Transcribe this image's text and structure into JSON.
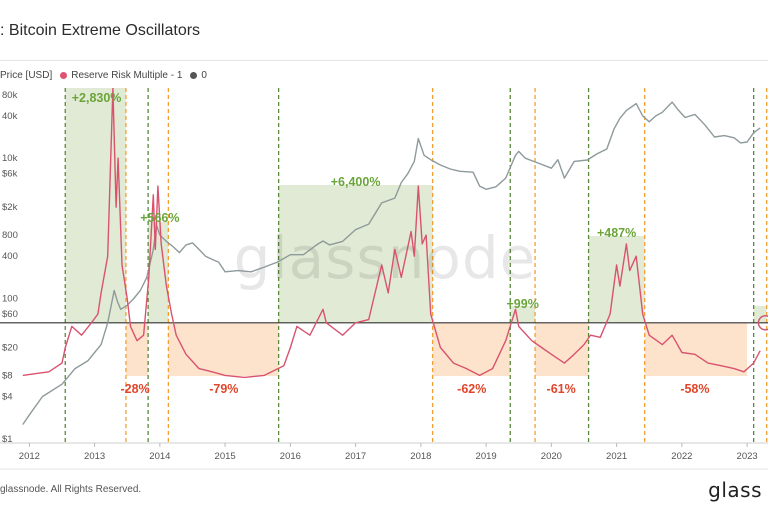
{
  "header": {
    "title": ": Bitcoin Extreme Oscillators"
  },
  "legend": {
    "items": [
      {
        "label": "Price [USD]",
        "color": "#8e9a9b"
      },
      {
        "label": "Reserve Risk Multiple - 1",
        "color": "#e0526f"
      },
      {
        "label": "0",
        "color": "#555555"
      }
    ]
  },
  "watermark": "glassnode",
  "footer": {
    "copyright": "glassnode. All Rights Reserved.",
    "brand": "glass"
  },
  "colors": {
    "price": "#8e9a9b",
    "risk": "#d9536f",
    "green_zone": "#dfe9d2",
    "orange_zone": "#fde2c9",
    "green_line": "#5a8a3a",
    "orange_line": "#f2a033",
    "green_text": "#6aa53a",
    "red_text": "#e0462b"
  },
  "chart_data": {
    "type": "line",
    "x_ticks": [
      "2012",
      "2013",
      "2014",
      "2015",
      "2016",
      "2017",
      "2018",
      "2019",
      "2020",
      "2021",
      "2022",
      "2023"
    ],
    "y_ticks": [
      "$1",
      "$4",
      "$8",
      "$20",
      "$60",
      "100",
      "400",
      "800",
      "$2k",
      "$6k",
      "10k",
      "40k",
      "80k"
    ],
    "y_scale": "log",
    "grid": false,
    "series": [
      {
        "name": "Price [USD]",
        "points": [
          [
            2011.9,
            1.6
          ],
          [
            2012.0,
            2.2
          ],
          [
            2012.2,
            4.0
          ],
          [
            2012.5,
            6.0
          ],
          [
            2012.7,
            10
          ],
          [
            2012.9,
            13
          ],
          [
            2013.0,
            17
          ],
          [
            2013.1,
            22
          ],
          [
            2013.2,
            45
          ],
          [
            2013.3,
            130
          ],
          [
            2013.35,
            90
          ],
          [
            2013.4,
            70
          ],
          [
            2013.5,
            80
          ],
          [
            2013.6,
            100
          ],
          [
            2013.7,
            130
          ],
          [
            2013.8,
            200
          ],
          [
            2013.9,
            500
          ],
          [
            2013.95,
            1100
          ],
          [
            2014.0,
            800
          ],
          [
            2014.1,
            650
          ],
          [
            2014.2,
            550
          ],
          [
            2014.3,
            450
          ],
          [
            2014.4,
            580
          ],
          [
            2014.5,
            620
          ],
          [
            2014.6,
            500
          ],
          [
            2014.7,
            400
          ],
          [
            2014.8,
            360
          ],
          [
            2014.9,
            330
          ],
          [
            2015.0,
            240
          ],
          [
            2015.2,
            250
          ],
          [
            2015.4,
            240
          ],
          [
            2015.6,
            280
          ],
          [
            2015.8,
            330
          ],
          [
            2016.0,
            420
          ],
          [
            2016.2,
            420
          ],
          [
            2016.4,
            580
          ],
          [
            2016.5,
            660
          ],
          [
            2016.6,
            580
          ],
          [
            2016.8,
            650
          ],
          [
            2017.0,
            960
          ],
          [
            2017.2,
            1150
          ],
          [
            2017.4,
            2300
          ],
          [
            2017.6,
            2700
          ],
          [
            2017.7,
            4500
          ],
          [
            2017.8,
            6000
          ],
          [
            2017.9,
            9000
          ],
          [
            2017.96,
            19000
          ],
          [
            2018.05,
            11000
          ],
          [
            2018.15,
            9500
          ],
          [
            2018.3,
            8000
          ],
          [
            2018.45,
            7000
          ],
          [
            2018.6,
            6500
          ],
          [
            2018.8,
            6300
          ],
          [
            2018.9,
            4000
          ],
          [
            2019.0,
            3600
          ],
          [
            2019.15,
            3900
          ],
          [
            2019.3,
            5200
          ],
          [
            2019.45,
            11000
          ],
          [
            2019.5,
            12500
          ],
          [
            2019.6,
            10000
          ],
          [
            2019.8,
            8500
          ],
          [
            2020.0,
            7200
          ],
          [
            2020.1,
            9500
          ],
          [
            2020.2,
            5200
          ],
          [
            2020.35,
            9000
          ],
          [
            2020.55,
            9400
          ],
          [
            2020.7,
            11500
          ],
          [
            2020.85,
            13500
          ],
          [
            2020.96,
            26000
          ],
          [
            2021.05,
            37000
          ],
          [
            2021.15,
            48000
          ],
          [
            2021.3,
            60000
          ],
          [
            2021.4,
            40000
          ],
          [
            2021.5,
            33000
          ],
          [
            2021.6,
            40000
          ],
          [
            2021.7,
            45000
          ],
          [
            2021.85,
            63000
          ],
          [
            2021.95,
            48000
          ],
          [
            2022.05,
            38000
          ],
          [
            2022.2,
            42000
          ],
          [
            2022.35,
            30000
          ],
          [
            2022.5,
            20000
          ],
          [
            2022.65,
            21000
          ],
          [
            2022.8,
            19500
          ],
          [
            2022.9,
            16500
          ],
          [
            2023.0,
            17000
          ],
          [
            2023.1,
            23000
          ],
          [
            2023.2,
            27000
          ]
        ]
      },
      {
        "name": "Reserve Risk Multiple - 1",
        "points": [
          [
            2011.9,
            8
          ],
          [
            2012.1,
            8.5
          ],
          [
            2012.3,
            9
          ],
          [
            2012.5,
            12
          ],
          [
            2012.55,
            20
          ],
          [
            2012.65,
            40
          ],
          [
            2012.8,
            30
          ],
          [
            2012.95,
            45
          ],
          [
            2013.05,
            60
          ],
          [
            2013.1,
            120
          ],
          [
            2013.2,
            400
          ],
          [
            2013.28,
            100000
          ],
          [
            2013.33,
            2000
          ],
          [
            2013.36,
            10000
          ],
          [
            2013.42,
            300
          ],
          [
            2013.5,
            100
          ],
          [
            2013.55,
            40
          ],
          [
            2013.65,
            25
          ],
          [
            2013.75,
            30
          ],
          [
            2013.83,
            200
          ],
          [
            2013.9,
            3000
          ],
          [
            2013.93,
            500
          ],
          [
            2013.97,
            4000
          ],
          [
            2014.02,
            600
          ],
          [
            2014.1,
            150
          ],
          [
            2014.18,
            60
          ],
          [
            2014.25,
            30
          ],
          [
            2014.4,
            16
          ],
          [
            2014.6,
            10
          ],
          [
            2014.8,
            9
          ],
          [
            2015.0,
            8
          ],
          [
            2015.3,
            7.5
          ],
          [
            2015.6,
            8
          ],
          [
            2015.9,
            11
          ],
          [
            2016.0,
            20
          ],
          [
            2016.1,
            40
          ],
          [
            2016.3,
            30
          ],
          [
            2016.5,
            70
          ],
          [
            2016.55,
            45
          ],
          [
            2016.8,
            30
          ],
          [
            2017.0,
            45
          ],
          [
            2017.2,
            50
          ],
          [
            2017.4,
            300
          ],
          [
            2017.5,
            120
          ],
          [
            2017.6,
            500
          ],
          [
            2017.7,
            200
          ],
          [
            2017.85,
            900
          ],
          [
            2017.9,
            400
          ],
          [
            2017.96,
            4000
          ],
          [
            2018.02,
            600
          ],
          [
            2018.08,
            800
          ],
          [
            2018.15,
            60
          ],
          [
            2018.3,
            20
          ],
          [
            2018.5,
            12
          ],
          [
            2018.7,
            10
          ],
          [
            2018.9,
            8
          ],
          [
            2019.1,
            10
          ],
          [
            2019.3,
            25
          ],
          [
            2019.45,
            70
          ],
          [
            2019.5,
            40
          ],
          [
            2019.7,
            25
          ],
          [
            2019.85,
            20
          ],
          [
            2020.0,
            16
          ],
          [
            2020.2,
            12
          ],
          [
            2020.35,
            16
          ],
          [
            2020.5,
            22
          ],
          [
            2020.6,
            30
          ],
          [
            2020.75,
            28
          ],
          [
            2020.9,
            60
          ],
          [
            2021.0,
            300
          ],
          [
            2021.05,
            150
          ],
          [
            2021.15,
            600
          ],
          [
            2021.2,
            250
          ],
          [
            2021.3,
            400
          ],
          [
            2021.4,
            60
          ],
          [
            2021.5,
            30
          ],
          [
            2021.7,
            22
          ],
          [
            2021.85,
            30
          ],
          [
            2022.0,
            17
          ],
          [
            2022.2,
            16
          ],
          [
            2022.4,
            12
          ],
          [
            2022.6,
            11
          ],
          [
            2022.8,
            10
          ],
          [
            2022.95,
            9
          ],
          [
            2023.1,
            12
          ],
          [
            2023.2,
            18
          ]
        ]
      }
    ],
    "zones": [
      {
        "kind": "green",
        "x0": 2012.55,
        "x1": 2013.48,
        "label": "+2,830%"
      },
      {
        "kind": "orange",
        "x0": 2013.48,
        "x1": 2013.82,
        "label": "-28%"
      },
      {
        "kind": "green",
        "x0": 2013.82,
        "x1": 2014.13,
        "label": "+566%"
      },
      {
        "kind": "orange",
        "x0": 2014.13,
        "x1": 2015.82,
        "label": "-79%"
      },
      {
        "kind": "green",
        "x0": 2015.82,
        "x1": 2018.18,
        "label": "+6,400%"
      },
      {
        "kind": "orange",
        "x0": 2018.18,
        "x1": 2019.37,
        "label": "-62%"
      },
      {
        "kind": "green",
        "x0": 2019.37,
        "x1": 2019.75,
        "label": "+99%"
      },
      {
        "kind": "orange",
        "x0": 2019.75,
        "x1": 2020.57,
        "label": "-61%"
      },
      {
        "kind": "green",
        "x0": 2020.57,
        "x1": 2021.43,
        "label": "+487%"
      },
      {
        "kind": "orange",
        "x0": 2021.43,
        "x1": 2023.0,
        "label": "-58%"
      },
      {
        "kind": "green",
        "x0": 2023.1,
        "x1": 2023.3,
        "label": ""
      }
    ]
  }
}
